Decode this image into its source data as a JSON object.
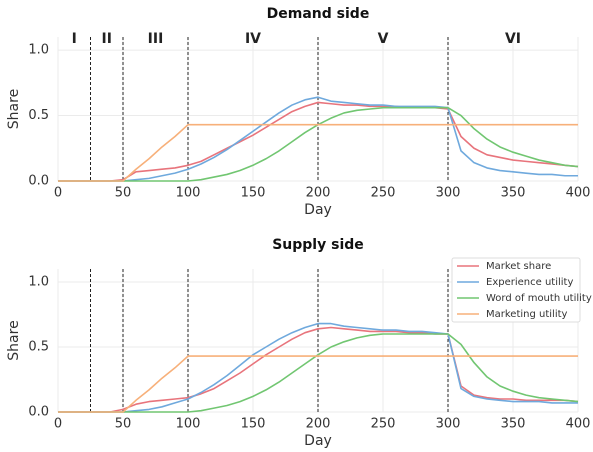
{
  "chart_data": [
    {
      "type": "line",
      "title": "Demand side",
      "xlabel": "Day",
      "ylabel": "Share",
      "x": [
        0,
        10,
        20,
        30,
        40,
        50,
        60,
        70,
        80,
        90,
        100,
        110,
        120,
        130,
        140,
        150,
        160,
        170,
        180,
        190,
        200,
        210,
        220,
        230,
        240,
        250,
        260,
        270,
        280,
        290,
        300,
        310,
        320,
        330,
        340,
        350,
        360,
        370,
        380,
        390,
        400
      ],
      "series": [
        {
          "name": "Market share",
          "color": "#e8747c",
          "values": [
            0,
            0,
            0,
            0,
            0,
            0.01,
            0.07,
            0.08,
            0.09,
            0.1,
            0.12,
            0.15,
            0.2,
            0.25,
            0.3,
            0.35,
            0.41,
            0.47,
            0.53,
            0.57,
            0.6,
            0.59,
            0.58,
            0.58,
            0.57,
            0.57,
            0.57,
            0.56,
            0.56,
            0.56,
            0.55,
            0.34,
            0.25,
            0.2,
            0.18,
            0.16,
            0.15,
            0.14,
            0.13,
            0.12,
            0.11
          ]
        },
        {
          "name": "Experience utility",
          "color": "#6fa9dd",
          "values": [
            0,
            0,
            0,
            0,
            0,
            0,
            0.01,
            0.02,
            0.04,
            0.06,
            0.09,
            0.13,
            0.18,
            0.24,
            0.31,
            0.38,
            0.45,
            0.52,
            0.58,
            0.62,
            0.64,
            0.61,
            0.6,
            0.59,
            0.58,
            0.58,
            0.57,
            0.57,
            0.57,
            0.57,
            0.56,
            0.23,
            0.14,
            0.1,
            0.08,
            0.07,
            0.06,
            0.05,
            0.05,
            0.04,
            0.04
          ]
        },
        {
          "name": "Word of mouth utility",
          "color": "#71c671",
          "values": [
            0,
            0,
            0,
            0,
            0,
            0,
            0,
            0,
            0,
            0,
            0,
            0.01,
            0.03,
            0.05,
            0.08,
            0.12,
            0.17,
            0.23,
            0.3,
            0.37,
            0.43,
            0.48,
            0.52,
            0.54,
            0.55,
            0.56,
            0.56,
            0.56,
            0.56,
            0.56,
            0.56,
            0.5,
            0.4,
            0.32,
            0.26,
            0.22,
            0.19,
            0.16,
            0.14,
            0.12,
            0.11
          ]
        },
        {
          "name": "Marketing utility",
          "color": "#f7b07a",
          "values": [
            0,
            0,
            0,
            0,
            0,
            0,
            0.09,
            0.17,
            0.26,
            0.34,
            0.43,
            0.43,
            0.43,
            0.43,
            0.43,
            0.43,
            0.43,
            0.43,
            0.43,
            0.43,
            0.43,
            0.43,
            0.43,
            0.43,
            0.43,
            0.43,
            0.43,
            0.43,
            0.43,
            0.43,
            0.43,
            0.43,
            0.43,
            0.43,
            0.43,
            0.43,
            0.43,
            0.43,
            0.43,
            0.43,
            0.43
          ]
        }
      ],
      "xlim": [
        0,
        400
      ],
      "xticks": [
        0,
        50,
        100,
        150,
        200,
        250,
        300,
        350,
        400
      ],
      "ylim": [
        0,
        1.1
      ],
      "yticks": [
        {
          "value": 0,
          "label": "0.0"
        },
        0.5,
        {
          "value": 1,
          "label": "1.0"
        }
      ],
      "grid": true,
      "vlines": [
        25,
        50,
        100,
        200,
        300
      ],
      "phases": [
        "I",
        "II",
        "III",
        "IV",
        "V",
        "VI"
      ]
    },
    {
      "type": "line",
      "title": "Supply side",
      "xlabel": "Day",
      "ylabel": "Share",
      "x": [
        0,
        10,
        20,
        30,
        40,
        50,
        60,
        70,
        80,
        90,
        100,
        110,
        120,
        130,
        140,
        150,
        160,
        170,
        180,
        190,
        200,
        210,
        220,
        230,
        240,
        250,
        260,
        270,
        280,
        290,
        300,
        310,
        320,
        330,
        340,
        350,
        360,
        370,
        380,
        390,
        400
      ],
      "series": [
        {
          "name": "Market share",
          "color": "#e8747c",
          "values": [
            0,
            0,
            0,
            0,
            0,
            0.02,
            0.06,
            0.08,
            0.09,
            0.1,
            0.11,
            0.14,
            0.18,
            0.24,
            0.3,
            0.37,
            0.44,
            0.5,
            0.56,
            0.61,
            0.64,
            0.65,
            0.64,
            0.63,
            0.62,
            0.62,
            0.62,
            0.61,
            0.61,
            0.6,
            0.6,
            0.2,
            0.13,
            0.11,
            0.1,
            0.1,
            0.09,
            0.09,
            0.09,
            0.09,
            0.08
          ]
        },
        {
          "name": "Experience utility",
          "color": "#6fa9dd",
          "values": [
            0,
            0,
            0,
            0,
            0,
            0,
            0.01,
            0.02,
            0.04,
            0.07,
            0.1,
            0.15,
            0.21,
            0.28,
            0.36,
            0.44,
            0.5,
            0.56,
            0.61,
            0.65,
            0.68,
            0.68,
            0.66,
            0.65,
            0.64,
            0.63,
            0.63,
            0.62,
            0.62,
            0.61,
            0.6,
            0.18,
            0.12,
            0.1,
            0.09,
            0.08,
            0.08,
            0.08,
            0.07,
            0.07,
            0.07
          ]
        },
        {
          "name": "Word of mouth utility",
          "color": "#71c671",
          "values": [
            0,
            0,
            0,
            0,
            0,
            0,
            0,
            0,
            0,
            0,
            0,
            0.01,
            0.03,
            0.05,
            0.08,
            0.12,
            0.17,
            0.23,
            0.3,
            0.37,
            0.44,
            0.5,
            0.54,
            0.57,
            0.59,
            0.6,
            0.6,
            0.6,
            0.6,
            0.6,
            0.6,
            0.52,
            0.38,
            0.27,
            0.2,
            0.16,
            0.13,
            0.11,
            0.1,
            0.09,
            0.08
          ]
        },
        {
          "name": "Marketing utility",
          "color": "#f7b07a",
          "values": [
            0,
            0,
            0,
            0,
            0,
            0,
            0.09,
            0.17,
            0.26,
            0.34,
            0.43,
            0.43,
            0.43,
            0.43,
            0.43,
            0.43,
            0.43,
            0.43,
            0.43,
            0.43,
            0.43,
            0.43,
            0.43,
            0.43,
            0.43,
            0.43,
            0.43,
            0.43,
            0.43,
            0.43,
            0.43,
            0.43,
            0.43,
            0.43,
            0.43,
            0.43,
            0.43,
            0.43,
            0.43,
            0.43,
            0.43
          ]
        }
      ],
      "xlim": [
        0,
        400
      ],
      "xticks": [
        0,
        50,
        100,
        150,
        200,
        250,
        300,
        350,
        400
      ],
      "ylim": [
        0,
        1.1
      ],
      "yticks": [
        {
          "value": 0,
          "label": "0.0"
        },
        0.5,
        {
          "value": 1,
          "label": "1.0"
        }
      ],
      "grid": true,
      "vlines": [
        25,
        50,
        100,
        300,
        200
      ],
      "legend": "upper right"
    }
  ]
}
